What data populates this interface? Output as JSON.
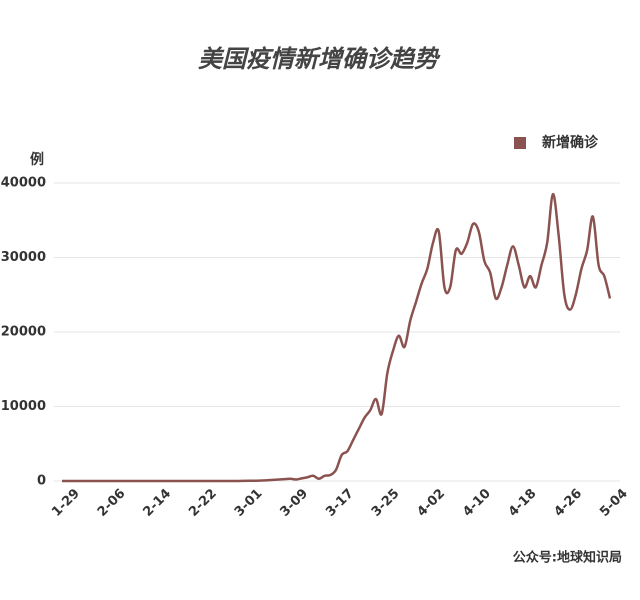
{
  "chart_data": {
    "type": "line",
    "title": "美国疫情新增确诊趋势",
    "y_label": "例",
    "source": "公众号:地球知识局",
    "categories": [
      "1-29",
      null,
      null,
      null,
      null,
      null,
      null,
      null,
      "2-06",
      null,
      null,
      null,
      null,
      null,
      null,
      null,
      "2-14",
      null,
      null,
      null,
      null,
      null,
      null,
      null,
      "2-22",
      null,
      null,
      null,
      null,
      null,
      null,
      null,
      "3-01",
      null,
      null,
      null,
      null,
      null,
      null,
      null,
      "3-09",
      null,
      null,
      null,
      null,
      null,
      null,
      null,
      "3-17",
      null,
      null,
      null,
      null,
      null,
      null,
      null,
      "3-25",
      null,
      null,
      null,
      null,
      null,
      null,
      null,
      "4-02",
      null,
      null,
      null,
      null,
      null,
      null,
      null,
      "4-10",
      null,
      null,
      null,
      null,
      null,
      null,
      null,
      "4-18",
      null,
      null,
      null,
      null,
      null,
      null,
      null,
      "4-26",
      null,
      null,
      null,
      null,
      null,
      null,
      null,
      "5-04"
    ],
    "series": [
      {
        "name": "新增确诊",
        "color": "#8b5350",
        "values": [
          0,
          0,
          0,
          0,
          0,
          0,
          0,
          0,
          0,
          0,
          0,
          0,
          0,
          0,
          0,
          0,
          0,
          0,
          0,
          0,
          0,
          0,
          0,
          0,
          0,
          0,
          0,
          0,
          0,
          0,
          0,
          0,
          20,
          30,
          40,
          60,
          100,
          150,
          200,
          250,
          300,
          200,
          350,
          500,
          700,
          300,
          700,
          800,
          1500,
          3500,
          4000,
          5500,
          7000,
          8500,
          9500,
          11000,
          9000,
          14500,
          17500,
          19500,
          18000,
          21500,
          24000,
          26500,
          28500,
          32000,
          33500,
          26000,
          26000,
          31000,
          30500,
          32000,
          34500,
          33500,
          29500,
          28000,
          24500,
          26000,
          29000,
          31500,
          29000,
          26000,
          27500,
          26000,
          29000,
          32000,
          38500,
          33000,
          25000,
          23000,
          25000,
          28500,
          31000,
          35500,
          29000,
          27500,
          24500
        ]
      }
    ],
    "ylim": [
      0,
      40000
    ],
    "yticks": [
      0,
      10000,
      20000,
      30000,
      40000
    ],
    "grid": true,
    "legend": "top-right"
  }
}
